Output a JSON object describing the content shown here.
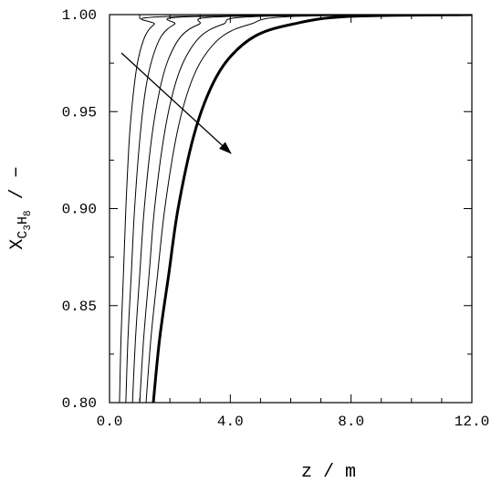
{
  "chart_data": {
    "type": "line",
    "xlabel": "z  /  m",
    "ylabel": [
      "X",
      "C",
      "3",
      "H",
      "8",
      "/  −"
    ],
    "xlim": [
      0,
      12
    ],
    "ylim": [
      0.8,
      1.0
    ],
    "xticks": [
      {
        "value": 0,
        "label": "0.0"
      },
      {
        "value": 4,
        "label": "4.0"
      },
      {
        "value": 8,
        "label": "8.0"
      },
      {
        "value": 12,
        "label": "12.0"
      }
    ],
    "xminorticks": [
      1,
      2,
      3,
      5,
      6,
      7,
      9,
      10,
      11
    ],
    "yticks": [
      {
        "value": 0.8,
        "label": "0.80"
      },
      {
        "value": 0.85,
        "label": "0.85"
      },
      {
        "value": 0.9,
        "label": "0.90"
      },
      {
        "value": 0.95,
        "label": "0.95"
      },
      {
        "value": 1.0,
        "label": "1.00"
      }
    ],
    "yminorticks": [
      0.825,
      0.875,
      0.925,
      0.975
    ],
    "grid": false,
    "series": [
      {
        "color": "#000000",
        "width": 1,
        "x": [
          0.33,
          0.38,
          0.46,
          0.54,
          0.66,
          0.8,
          0.95,
          1.18,
          1.48,
          1.93,
          12
        ],
        "values": [
          0.8,
          0.833,
          0.866,
          0.9,
          0.937,
          0.961,
          0.977,
          0.989,
          0.995,
          0.999,
          1.0
        ]
      },
      {
        "color": "#000000",
        "width": 1,
        "x": [
          0.54,
          0.61,
          0.72,
          0.83,
          1.01,
          1.19,
          1.41,
          1.72,
          2.15,
          2.78,
          12
        ],
        "values": [
          0.8,
          0.833,
          0.866,
          0.9,
          0.937,
          0.961,
          0.977,
          0.989,
          0.995,
          0.999,
          1.0
        ]
      },
      {
        "color": "#000000",
        "width": 1,
        "x": [
          0.76,
          0.86,
          1.0,
          1.15,
          1.4,
          1.66,
          1.95,
          2.38,
          2.96,
          3.83,
          12
        ],
        "values": [
          0.8,
          0.833,
          0.866,
          0.9,
          0.937,
          0.961,
          0.977,
          0.989,
          0.995,
          0.999,
          1.0
        ]
      },
      {
        "color": "#000000",
        "width": 1,
        "x": [
          1.0,
          1.13,
          1.31,
          1.49,
          1.8,
          2.12,
          2.49,
          3.03,
          3.75,
          4.84,
          12
        ],
        "values": [
          0.8,
          0.833,
          0.866,
          0.9,
          0.937,
          0.961,
          0.977,
          0.989,
          0.995,
          0.999,
          1.0
        ]
      },
      {
        "color": "#000000",
        "width": 1,
        "x": [
          1.21,
          1.37,
          1.59,
          1.83,
          2.21,
          2.61,
          3.07,
          3.75,
          4.65,
          6.01,
          12
        ],
        "values": [
          0.8,
          0.833,
          0.866,
          0.9,
          0.937,
          0.961,
          0.977,
          0.989,
          0.995,
          0.999,
          1.0
        ]
      },
      {
        "color": "#000000",
        "width": 3,
        "x": [
          1.45,
          1.66,
          1.96,
          2.27,
          2.78,
          3.32,
          3.93,
          4.83,
          6.04,
          7.85,
          12
        ],
        "values": [
          0.8,
          0.833,
          0.866,
          0.9,
          0.937,
          0.961,
          0.977,
          0.989,
          0.995,
          0.999,
          1.0
        ]
      }
    ]
  }
}
